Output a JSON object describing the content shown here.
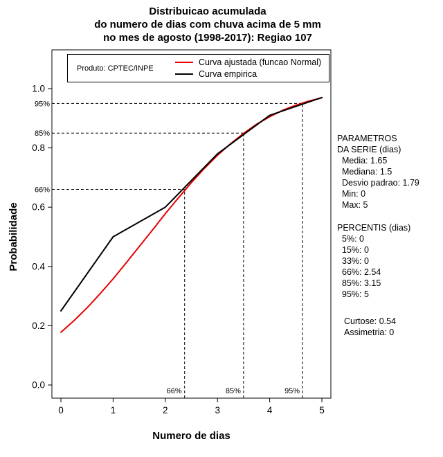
{
  "title": {
    "line1": "Distribuicao acumulada",
    "line2": "do numero de dias com chuva acima de 5 mm",
    "line3": "no mes de agosto (1998-2017): Regiao 107"
  },
  "legend": {
    "product": "Produto: CPTEC/INPE",
    "entries": [
      {
        "label": "Curva ajustada (funcao Normal)",
        "color": "#e60000"
      },
      {
        "label": "Curva empirica",
        "color": "#000000"
      }
    ]
  },
  "axes": {
    "xlabel": "Numero de dias",
    "ylabel": "Probabilidade",
    "xticks": [
      0,
      1,
      2,
      3,
      4,
      5
    ],
    "yticks": [
      "0.0",
      "0.2",
      "0.4",
      "0.6",
      "0.8",
      "1.0"
    ]
  },
  "side_panel": {
    "params_header1": "PARAMETROS",
    "params_header2": "DA SERIE (dias)",
    "params": [
      "Media: 1.65",
      "Mediana: 1.5",
      "Desvio padrao: 1.79",
      "Min: 0",
      "Max: 5"
    ],
    "percentis_header": "PERCENTIS (dias)",
    "percentis": [
      "5%: 0",
      "15%: 0",
      "33%: 0",
      "66%: 2.54",
      "85%: 3.15",
      "95%: 5"
    ],
    "extra": [
      "Curtose: 0.54",
      "Assimetria: 0"
    ]
  },
  "chart_data": {
    "type": "line",
    "title": "Distribuicao acumulada do numero de dias com chuva acima de 5 mm no mes de agosto (1998-2017): Regiao 107",
    "xlabel": "Numero de dias",
    "ylabel": "Probabilidade",
    "xlim": [
      0,
      5
    ],
    "ylim": [
      0,
      1
    ],
    "grid": false,
    "legend_position": "top",
    "series": [
      {
        "name": "Curva ajustada (funcao Normal)",
        "color": "#e60000",
        "x": [
          0,
          0.25,
          0.5,
          0.75,
          1,
          1.25,
          1.5,
          1.75,
          2,
          2.25,
          2.5,
          2.75,
          3,
          3.25,
          3.5,
          3.75,
          4,
          4.25,
          4.5,
          4.75,
          5
        ],
        "y": [
          0.178,
          0.217,
          0.26,
          0.308,
          0.358,
          0.412,
          0.467,
          0.522,
          0.578,
          0.631,
          0.683,
          0.731,
          0.775,
          0.814,
          0.849,
          0.88,
          0.905,
          0.927,
          0.944,
          0.958,
          0.969
        ]
      },
      {
        "name": "Curva empirica",
        "color": "#000000",
        "x": [
          0,
          1,
          2,
          3,
          4,
          5
        ],
        "y": [
          0.25,
          0.5,
          0.6,
          0.78,
          0.91,
          0.97
        ]
      }
    ],
    "percentile_lines": [
      {
        "label": "66%",
        "x": 2.37,
        "p": 0.66
      },
      {
        "label": "85%",
        "x": 3.5,
        "p": 0.85
      },
      {
        "label": "95%",
        "x": 4.63,
        "p": 0.95
      }
    ]
  }
}
